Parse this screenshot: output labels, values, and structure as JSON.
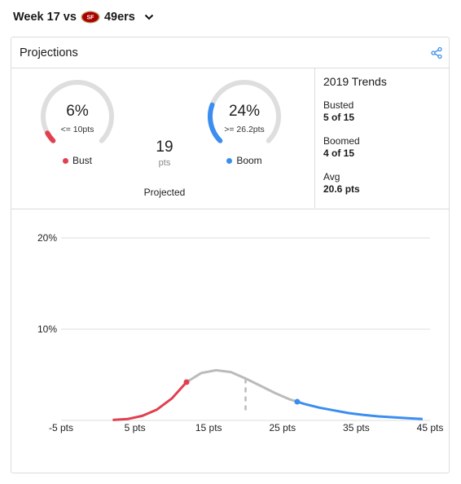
{
  "header": {
    "week_label": "Week 17 vs",
    "opponent": "49ers",
    "team_logo_icon": "49ers-logo-icon",
    "dropdown_icon": "chevron-down-icon"
  },
  "card": {
    "title": "Projections",
    "share_icon": "share-icon"
  },
  "bust": {
    "percent": "6%",
    "threshold": "<= 10pts",
    "label": "Bust",
    "fraction": 0.06,
    "color": "#e0404f"
  },
  "projected": {
    "value": "19",
    "unit": "pts",
    "label": "Projected"
  },
  "boom": {
    "percent": "24%",
    "threshold": ">= 26.2pts",
    "label": "Boom",
    "fraction": 0.24,
    "color": "#3b8ef0"
  },
  "trends": {
    "title": "2019 Trends",
    "busted_label": "Busted",
    "busted_value": "5 of 15",
    "boomed_label": "Boomed",
    "boomed_value": "4 of 15",
    "avg_label": "Avg",
    "avg_value": "20.6 pts"
  },
  "colors": {
    "grid": "#dddddd",
    "neutral": "#bbbbbb",
    "bust": "#e0404f",
    "boom": "#3b8ef0"
  },
  "chart_data": {
    "type": "area",
    "x_ticks": [
      {
        "value": -5,
        "label": "-5 pts"
      },
      {
        "value": 5,
        "label": "5 pts"
      },
      {
        "value": 15,
        "label": "15 pts"
      },
      {
        "value": 25,
        "label": "25 pts"
      },
      {
        "value": 35,
        "label": "35 pts"
      },
      {
        "value": 45,
        "label": "45 pts"
      }
    ],
    "y_ticks": [
      {
        "value": 10,
        "label": "10%"
      },
      {
        "value": 20,
        "label": "20%"
      }
    ],
    "xlim": [
      -5,
      45
    ],
    "ylim": [
      0,
      20
    ],
    "projected_x": 20,
    "bust_x": 12,
    "boom_x": 27,
    "series": [
      {
        "x": [
          2,
          4,
          6,
          8,
          10,
          12,
          14,
          16,
          18,
          20,
          22,
          24,
          26,
          28,
          30,
          32,
          34,
          36,
          38,
          40,
          42,
          44
        ],
        "values": [
          0.05,
          0.15,
          0.5,
          1.2,
          2.4,
          4.2,
          5.2,
          5.5,
          5.3,
          4.6,
          3.8,
          3.0,
          2.3,
          1.8,
          1.4,
          1.1,
          0.8,
          0.6,
          0.45,
          0.35,
          0.25,
          0.15
        ]
      }
    ]
  }
}
